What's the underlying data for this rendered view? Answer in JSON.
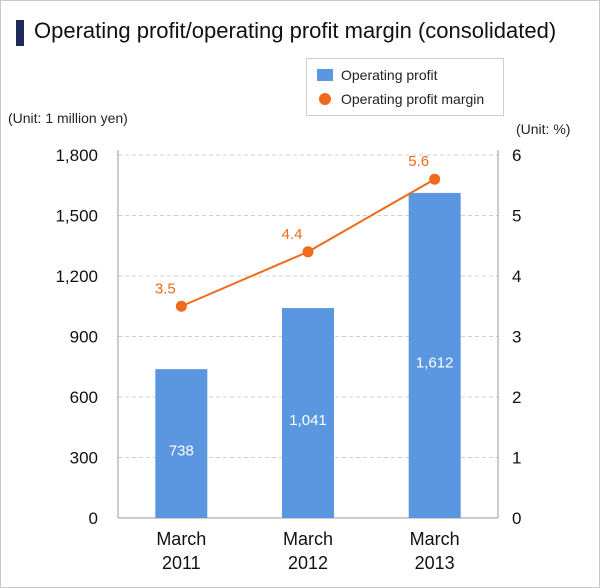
{
  "title": "Operating profit/operating profit margin (consolidated)",
  "colors": {
    "bar": "#5b97e0",
    "line": "#f06a1b",
    "grid": "#d0d0d0",
    "axis": "#9a9a9a",
    "title_bar": "#1f2a5c"
  },
  "chart_data": {
    "type": "bar+line",
    "title": "Operating profit/operating profit margin (consolidated)",
    "categories": [
      "March\n2011",
      "March\n2012",
      "March\n2013"
    ],
    "series": [
      {
        "name": "Operating profit",
        "type": "bar",
        "axis": "left",
        "values": [
          738,
          1041,
          1612
        ],
        "labels": [
          "738",
          "1,041",
          "1,612"
        ]
      },
      {
        "name": "Operating profit margin",
        "type": "line",
        "axis": "right",
        "values": [
          3.5,
          4.4,
          5.6
        ],
        "labels": [
          "3.5",
          "4.4",
          "5.6"
        ]
      }
    ],
    "y_left": {
      "label": "(Unit: 1 million yen)",
      "range": [
        0,
        1800
      ],
      "ticks": [
        0,
        300,
        600,
        900,
        1200,
        1500,
        1800
      ],
      "tick_labels": [
        "0",
        "300",
        "600",
        "900",
        "1,200",
        "1,500",
        "1,800"
      ]
    },
    "y_right": {
      "label": "(Unit: %)",
      "range": [
        0,
        6
      ],
      "ticks": [
        0,
        1,
        2,
        3,
        4,
        5,
        6
      ],
      "tick_labels": [
        "0",
        "1",
        "2",
        "3",
        "4",
        "5",
        "6"
      ]
    },
    "legend": {
      "position": "top-right",
      "entries": [
        "Operating profit",
        "Operating profit margin"
      ]
    },
    "grid": true
  }
}
